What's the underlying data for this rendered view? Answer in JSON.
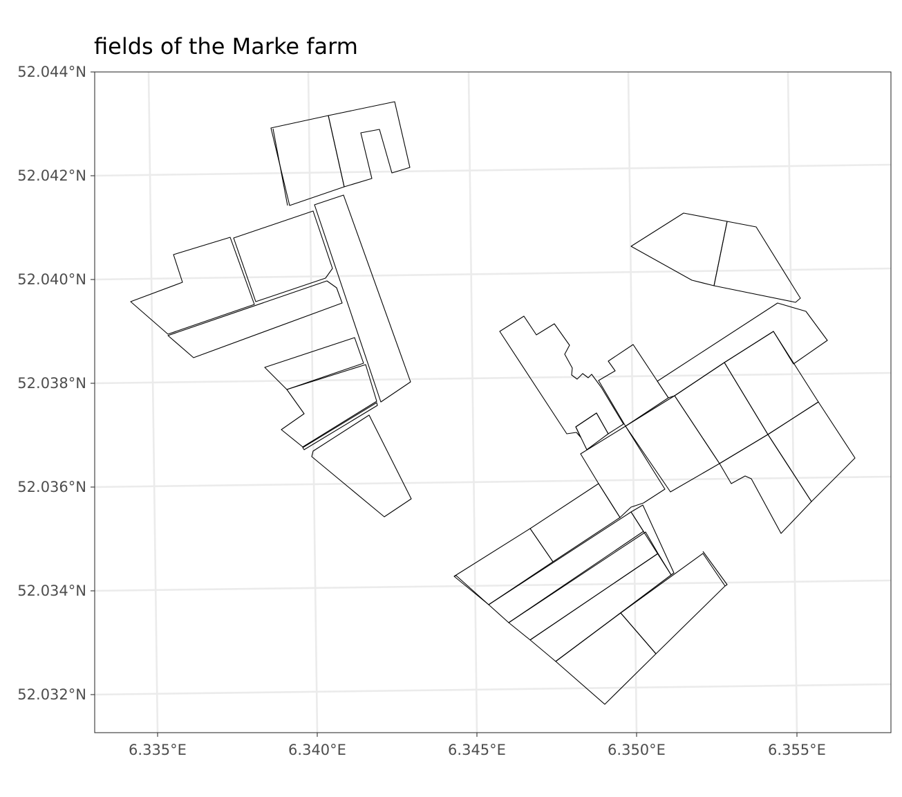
{
  "chart_data": {
    "type": "map",
    "title": "fields of the Marke farm",
    "x_ticks": [
      "6.335°E",
      "6.340°E",
      "6.345°E",
      "6.350°E",
      "6.355°E"
    ],
    "y_ticks": [
      "52.044°N",
      "52.042°N",
      "52.040°N",
      "52.038°N",
      "52.036°N",
      "52.034°N",
      "52.032°N"
    ],
    "xlim": [
      6.333,
      6.358
    ],
    "ylim": [
      52.0313,
      52.044
    ],
    "grid": true,
    "legend": "none",
    "colors": {
      "field_outline": "#000000",
      "grid": "#ebebeb",
      "axis_text": "#4d4d4d",
      "panel_border": "#333333"
    }
  }
}
